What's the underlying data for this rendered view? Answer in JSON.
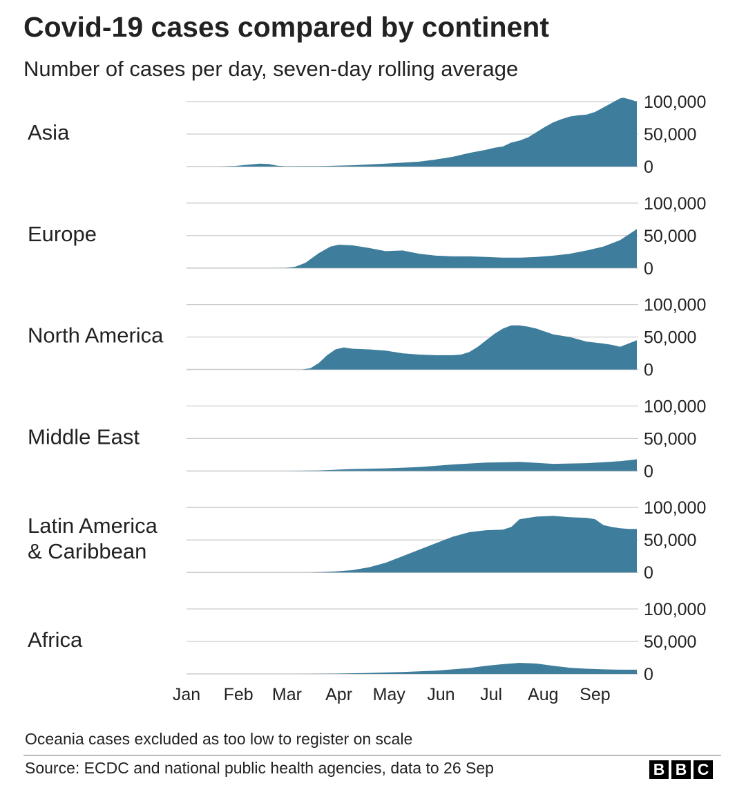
{
  "title": "Covid-19 cases compared by continent",
  "subtitle": "Number of cases per day, seven-day rolling average",
  "note": "Oceania cases excluded as too low to register on scale",
  "source": "Source: ECDC and national public health agencies, data to 26 Sep",
  "brand": {
    "letters": [
      "B",
      "B",
      "C"
    ]
  },
  "colors": {
    "area": "#3e7e9c",
    "grid": "#cccccc",
    "text": "#222222"
  },
  "chart_data": {
    "type": "area",
    "title": "Covid-19 cases compared by continent",
    "subtitle": "Number of cases per day, seven-day rolling average",
    "x_unit": "day of year 2020",
    "x_ticks": [
      {
        "label": "Jan",
        "day": 1
      },
      {
        "label": "Feb",
        "day": 32
      },
      {
        "label": "Mar",
        "day": 61
      },
      {
        "label": "Apr",
        "day": 92
      },
      {
        "label": "May",
        "day": 122
      },
      {
        "label": "Jun",
        "day": 153
      },
      {
        "label": "Jul",
        "day": 183
      },
      {
        "label": "Aug",
        "day": 214
      },
      {
        "label": "Sep",
        "day": 245
      }
    ],
    "xlim": [
      1,
      270
    ],
    "ylim": [
      0,
      100000
    ],
    "y_ticks": [
      {
        "value": 100000,
        "label": "100,000"
      },
      {
        "value": 50000,
        "label": "50,000"
      },
      {
        "value": 0,
        "label": "0"
      }
    ],
    "series": [
      {
        "name": "Asia",
        "label_lines": [
          "Asia"
        ],
        "x": [
          1,
          20,
          30,
          40,
          45,
          50,
          55,
          60,
          80,
          100,
          120,
          140,
          150,
          160,
          170,
          180,
          185,
          190,
          195,
          200,
          205,
          210,
          215,
          220,
          225,
          230,
          235,
          240,
          245,
          250,
          255,
          260,
          262,
          265,
          270
        ],
        "values": [
          0,
          0,
          1000,
          3500,
          4500,
          4000,
          1500,
          500,
          600,
          2000,
          4500,
          7500,
          11000,
          15000,
          21000,
          26000,
          29000,
          31000,
          37000,
          40000,
          45000,
          53000,
          61000,
          68000,
          73000,
          77000,
          79000,
          80000,
          84000,
          91000,
          98000,
          105000,
          106000,
          104000,
          100000
        ]
      },
      {
        "name": "Europe",
        "label_lines": [
          "Europe"
        ],
        "x": [
          1,
          50,
          60,
          66,
          72,
          80,
          87,
          92,
          100,
          110,
          120,
          130,
          140,
          150,
          160,
          170,
          180,
          190,
          200,
          210,
          220,
          230,
          240,
          250,
          260,
          270
        ],
        "values": [
          0,
          0,
          300,
          2000,
          8000,
          23000,
          33000,
          36000,
          35000,
          31000,
          26000,
          27000,
          22000,
          19000,
          18000,
          18000,
          17000,
          16000,
          16000,
          17000,
          19000,
          22000,
          27000,
          33000,
          43000,
          60000
        ]
      },
      {
        "name": "North America",
        "label_lines": [
          "North America"
        ],
        "x": [
          1,
          70,
          75,
          80,
          85,
          90,
          95,
          100,
          110,
          120,
          130,
          140,
          150,
          160,
          165,
          170,
          175,
          180,
          185,
          190,
          195,
          200,
          205,
          210,
          220,
          230,
          240,
          250,
          255,
          260,
          265,
          270
        ],
        "values": [
          0,
          0,
          2000,
          10000,
          22000,
          31000,
          34000,
          32000,
          31000,
          29000,
          25000,
          23000,
          22000,
          22000,
          23000,
          27000,
          35000,
          45000,
          55000,
          63000,
          68000,
          68000,
          66000,
          63000,
          54000,
          50000,
          43000,
          40000,
          38000,
          35000,
          40000,
          45000
        ]
      },
      {
        "name": "Middle East",
        "label_lines": [
          "Middle East"
        ],
        "x": [
          1,
          60,
          80,
          100,
          120,
          140,
          160,
          180,
          200,
          220,
          240,
          260,
          270
        ],
        "values": [
          0,
          0,
          800,
          3000,
          4000,
          6000,
          10000,
          13000,
          14000,
          11000,
          12000,
          15000,
          18000
        ]
      },
      {
        "name": "Latin America & Caribbean",
        "label_lines": [
          "Latin America",
          "& Caribbean"
        ],
        "x": [
          1,
          75,
          90,
          100,
          110,
          120,
          130,
          140,
          150,
          160,
          170,
          180,
          190,
          195,
          200,
          210,
          220,
          230,
          240,
          245,
          250,
          255,
          260,
          265,
          270
        ],
        "values": [
          0,
          0,
          1500,
          3500,
          8000,
          15000,
          25000,
          35000,
          45000,
          55000,
          62000,
          65000,
          66000,
          70000,
          82000,
          86000,
          87000,
          85000,
          84000,
          82000,
          73000,
          70000,
          68000,
          67000,
          67000
        ]
      },
      {
        "name": "Africa",
        "label_lines": [
          "Africa"
        ],
        "x": [
          1,
          70,
          90,
          110,
          130,
          150,
          170,
          180,
          190,
          200,
          210,
          220,
          230,
          240,
          250,
          260,
          270
        ],
        "values": [
          0,
          0,
          400,
          1500,
          3000,
          5000,
          9000,
          12500,
          15000,
          17000,
          16000,
          12500,
          9500,
          8000,
          7000,
          6500,
          6500
        ]
      }
    ]
  }
}
